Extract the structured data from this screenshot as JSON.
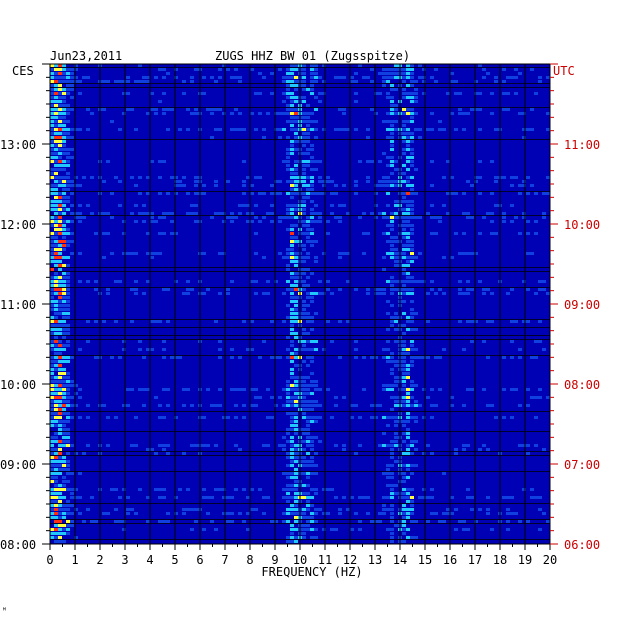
{
  "header": {
    "date": "Jun23,2011",
    "station": "ZUGS HHZ BW 01 (Zugsspitze)",
    "left_zone": "CES",
    "right_zone": "UTC"
  },
  "footer_mark": "ᴹ",
  "colors": {
    "background": "#0000b4",
    "grid": "#000000",
    "utc_text": "#cc0000",
    "low": "#1040e0",
    "mid": "#20c8ff",
    "high": "#ffff40",
    "peak": "#ff3010"
  },
  "chart_data": {
    "type": "heatmap",
    "xlabel": "FREQUENCY (HZ)",
    "xlim": [
      0,
      20
    ],
    "x_ticks": [
      "0",
      "1",
      "2",
      "3",
      "4",
      "5",
      "6",
      "7",
      "8",
      "9",
      "10",
      "11",
      "12",
      "13",
      "14",
      "15",
      "16",
      "17",
      "18",
      "19",
      "20"
    ],
    "left_time_ticks": [
      {
        "label": "13:00",
        "hours_from_top": 1
      },
      {
        "label": "12:00",
        "hours_from_top": 2
      },
      {
        "label": "11:00",
        "hours_from_top": 3
      },
      {
        "label": "10:00",
        "hours_from_top": 4
      },
      {
        "label": "09:00",
        "hours_from_top": 5
      },
      {
        "label": "08:00",
        "hours_from_top": 6
      }
    ],
    "right_time_ticks": [
      {
        "label": "11:00",
        "hours_from_top": 1
      },
      {
        "label": "10:00",
        "hours_from_top": 2
      },
      {
        "label": "09:00",
        "hours_from_top": 3
      },
      {
        "label": "08:00",
        "hours_from_top": 4
      },
      {
        "label": "07:00",
        "hours_from_top": 5
      },
      {
        "label": "06:00",
        "hours_from_top": 6
      }
    ],
    "hours_span": 6,
    "energy_bands_hz": [
      {
        "center": 0.3,
        "strength": 0.9
      },
      {
        "center": 9.7,
        "strength": 0.85
      },
      {
        "center": 10.3,
        "strength": 0.5
      },
      {
        "center": 13.6,
        "strength": 0.45
      },
      {
        "center": 14.2,
        "strength": 0.7
      }
    ]
  }
}
